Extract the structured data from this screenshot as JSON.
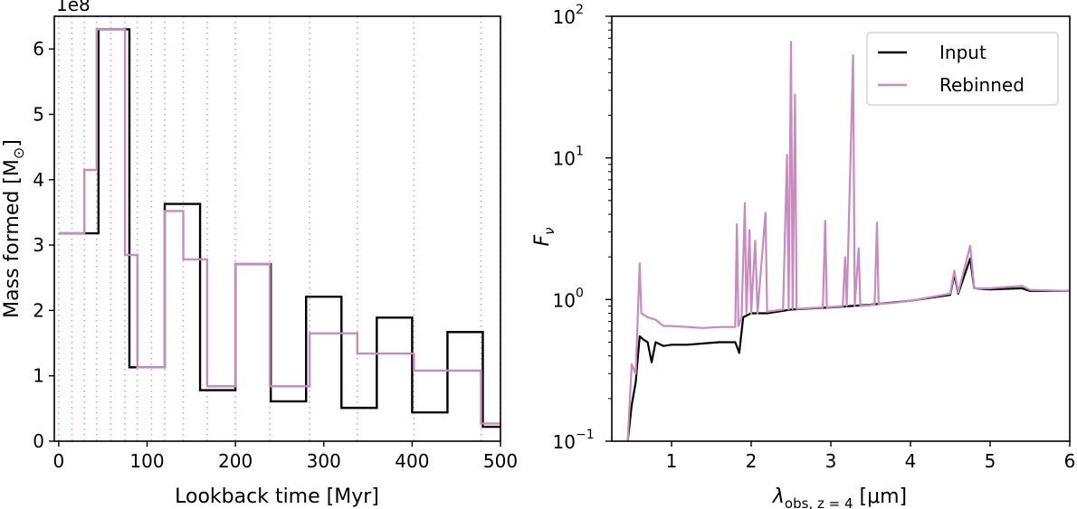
{
  "chart_data": [
    {
      "type": "line",
      "title": "",
      "xlabel": "Lookback time [Myr]",
      "ylabel": "Mass formed [M",
      "ylabel_sub": "⊙",
      "ylabel_close": "]",
      "offset_text": "1e8",
      "xlim": [
        -5,
        500
      ],
      "ylim": [
        0,
        6.5
      ],
      "xticks": [
        0,
        100,
        200,
        300,
        400,
        500
      ],
      "xtick_labels": [
        "0",
        "100",
        "200",
        "300",
        "400",
        "500"
      ],
      "yticks": [
        0,
        1,
        2,
        3,
        4,
        5,
        6
      ],
      "ytick_labels": [
        "0",
        "1",
        "2",
        "3",
        "4",
        "5",
        "6"
      ],
      "bin_edges_dotted": [
        0,
        15,
        29,
        43,
        59,
        75,
        89,
        105,
        120,
        141,
        168,
        200,
        239,
        284,
        338,
        402,
        478,
        500
      ],
      "series": [
        {
          "name": "Input",
          "color": "#000000",
          "edges": [
            0,
            35,
            45,
            80,
            90,
            120,
            160,
            200,
            240,
            280,
            320,
            360,
            400,
            440,
            480,
            500
          ],
          "values": [
            3.18,
            3.18,
            6.3,
            1.13,
            1.13,
            3.63,
            0.78,
            2.71,
            0.61,
            2.21,
            0.51,
            1.89,
            0.44,
            1.67,
            0.22
          ]
        },
        {
          "name": "Rebinned",
          "color": "#c98bbf",
          "edges": [
            0,
            29,
            43,
            75,
            89,
            120,
            141,
            168,
            200,
            239,
            284,
            338,
            402,
            478,
            500
          ],
          "values": [
            3.18,
            4.15,
            6.3,
            2.85,
            1.13,
            3.52,
            2.78,
            0.84,
            2.71,
            0.84,
            1.65,
            1.34,
            1.08,
            0.27
          ]
        }
      ]
    },
    {
      "type": "line",
      "title": "",
      "xlabel_lambda": "λ",
      "xlabel_sub": "obs, z = 4",
      "xlabel_unit": " [μm]",
      "ylabel": "F",
      "ylabel_sub": "ν",
      "xlim": [
        0.25,
        6.0
      ],
      "ylim": [
        0.1,
        100
      ],
      "yscale": "log",
      "xticks": [
        1,
        2,
        3,
        4,
        5,
        6
      ],
      "xtick_labels": [
        "1",
        "2",
        "3",
        "4",
        "5",
        "6"
      ],
      "yticks": [
        0.1,
        1,
        10,
        100
      ],
      "ytick_bases": [
        "10",
        "10",
        "10",
        "10"
      ],
      "ytick_exps": [
        "−1",
        "0",
        "1",
        "2"
      ],
      "legend": {
        "position": "top-right",
        "entries": [
          "Input",
          "Rebinned"
        ]
      },
      "series": [
        {
          "name": "Input",
          "color": "#000000",
          "points": [
            [
              0.45,
              0.1
            ],
            [
              0.5,
              0.18
            ],
            [
              0.55,
              0.26
            ],
            [
              0.6,
              0.55
            ],
            [
              0.65,
              0.52
            ],
            [
              0.7,
              0.5
            ],
            [
              0.75,
              0.36
            ],
            [
              0.8,
              0.5
            ],
            [
              0.9,
              0.47
            ],
            [
              1.0,
              0.48
            ],
            [
              1.2,
              0.48
            ],
            [
              1.4,
              0.49
            ],
            [
              1.6,
              0.5
            ],
            [
              1.8,
              0.5
            ],
            [
              1.85,
              0.42
            ],
            [
              1.9,
              0.75
            ],
            [
              2.0,
              0.8
            ],
            [
              2.2,
              0.8
            ],
            [
              2.5,
              0.85
            ],
            [
              3.0,
              0.88
            ],
            [
              3.5,
              0.92
            ],
            [
              4.0,
              0.98
            ],
            [
              4.5,
              1.08
            ],
            [
              4.55,
              1.5
            ],
            [
              4.6,
              1.1
            ],
            [
              4.75,
              1.95
            ],
            [
              4.8,
              1.2
            ],
            [
              5.0,
              1.18
            ],
            [
              5.4,
              1.2
            ],
            [
              5.5,
              1.15
            ],
            [
              6.0,
              1.15
            ]
          ]
        },
        {
          "name": "Rebinned",
          "color": "#c98bbf",
          "points": [
            [
              0.45,
              0.1
            ],
            [
              0.5,
              0.35
            ],
            [
              0.55,
              0.3
            ],
            [
              0.6,
              1.8
            ],
            [
              0.62,
              0.8
            ],
            [
              0.7,
              0.75
            ],
            [
              0.8,
              0.72
            ],
            [
              0.9,
              0.65
            ],
            [
              1.0,
              0.65
            ],
            [
              1.2,
              0.64
            ],
            [
              1.4,
              0.63
            ],
            [
              1.6,
              0.64
            ],
            [
              1.8,
              0.64
            ],
            [
              1.82,
              3.4
            ],
            [
              1.84,
              0.65
            ],
            [
              1.88,
              0.75
            ],
            [
              1.92,
              4.8
            ],
            [
              1.94,
              0.8
            ],
            [
              1.98,
              3.1
            ],
            [
              2.0,
              0.8
            ],
            [
              2.05,
              2.6
            ],
            [
              2.08,
              0.8
            ],
            [
              2.18,
              4.1
            ],
            [
              2.2,
              0.82
            ],
            [
              2.4,
              0.85
            ],
            [
              2.45,
              10.5
            ],
            [
              2.47,
              0.85
            ],
            [
              2.5,
              66
            ],
            [
              2.52,
              0.86
            ],
            [
              2.55,
              28
            ],
            [
              2.57,
              0.86
            ],
            [
              2.9,
              0.88
            ],
            [
              2.93,
              3.6
            ],
            [
              2.95,
              0.88
            ],
            [
              3.15,
              0.9
            ],
            [
              3.18,
              2.0
            ],
            [
              3.2,
              0.9
            ],
            [
              3.28,
              53
            ],
            [
              3.3,
              0.9
            ],
            [
              3.35,
              2.3
            ],
            [
              3.37,
              0.9
            ],
            [
              3.55,
              0.92
            ],
            [
              3.58,
              3.5
            ],
            [
              3.6,
              0.93
            ],
            [
              3.8,
              0.95
            ],
            [
              4.0,
              0.98
            ],
            [
              4.5,
              1.1
            ],
            [
              4.55,
              1.6
            ],
            [
              4.6,
              1.12
            ],
            [
              4.75,
              2.4
            ],
            [
              4.8,
              1.2
            ],
            [
              5.0,
              1.2
            ],
            [
              5.4,
              1.25
            ],
            [
              5.5,
              1.17
            ],
            [
              6.0,
              1.15
            ]
          ]
        }
      ]
    }
  ]
}
